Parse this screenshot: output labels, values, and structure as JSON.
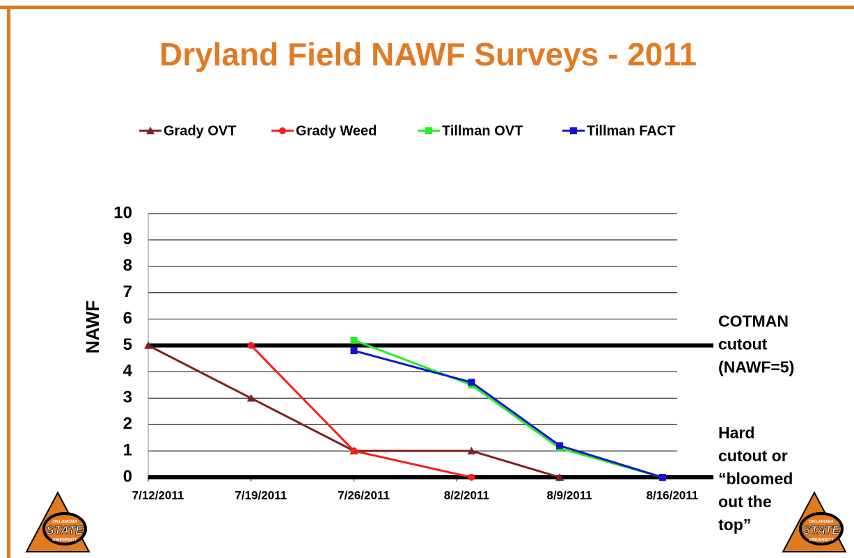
{
  "chart_data": {
    "type": "line",
    "title": "Dryland Field NAWF Surveys - 2011",
    "y_label": "NAWF",
    "xlim": [
      "7/12/2011",
      "8/17/2011"
    ],
    "xticks": [
      "7/12/2011",
      "7/19/2011",
      "7/26/2011",
      "8/2/2011",
      "8/9/2011",
      "8/16/2011"
    ],
    "ylim": [
      0,
      10
    ],
    "yticks": [
      0,
      1,
      2,
      3,
      4,
      5,
      6,
      7,
      8,
      9,
      10
    ],
    "grid": true,
    "legend": "top",
    "series": [
      {
        "name": "Grady OVT",
        "color": "#7f1f1f",
        "marker": "triangle",
        "x": [
          "7/12/2011",
          "7/19/2011",
          "7/26/2011",
          "8/3/2011",
          "8/9/2011"
        ],
        "values": [
          5,
          3,
          1,
          1,
          0
        ]
      },
      {
        "name": "Grady Weed",
        "color": "#ff1a1a",
        "marker": "circle",
        "x": [
          "7/19/2011",
          "7/26/2011",
          "8/3/2011"
        ],
        "values": [
          5,
          1,
          0
        ]
      },
      {
        "name": "Tillman OVT",
        "color": "#22ee22",
        "marker": "square",
        "x": [
          "7/26/2011",
          "8/3/2011",
          "8/9/2011",
          "8/16/2011"
        ],
        "values": [
          5.2,
          3.5,
          1.1,
          0
        ]
      },
      {
        "name": "Tillman FACT",
        "color": "#1414d0",
        "marker": "square",
        "x": [
          "7/26/2011",
          "8/3/2011",
          "8/9/2011",
          "8/16/2011"
        ],
        "values": [
          4.8,
          3.6,
          1.2,
          0
        ]
      }
    ],
    "reference_lines": [
      {
        "y": 5,
        "lines": [
          "COTMAN",
          "cutout",
          "(NAWF=5)"
        ]
      },
      {
        "y": 0,
        "lines": [
          "Hard",
          "cutout or",
          "“bloomed",
          "out the",
          "top”"
        ]
      }
    ]
  },
  "logo": {
    "lines": [
      "OKLAHOMA",
      "STATE",
      "UNIVERSITY"
    ]
  }
}
